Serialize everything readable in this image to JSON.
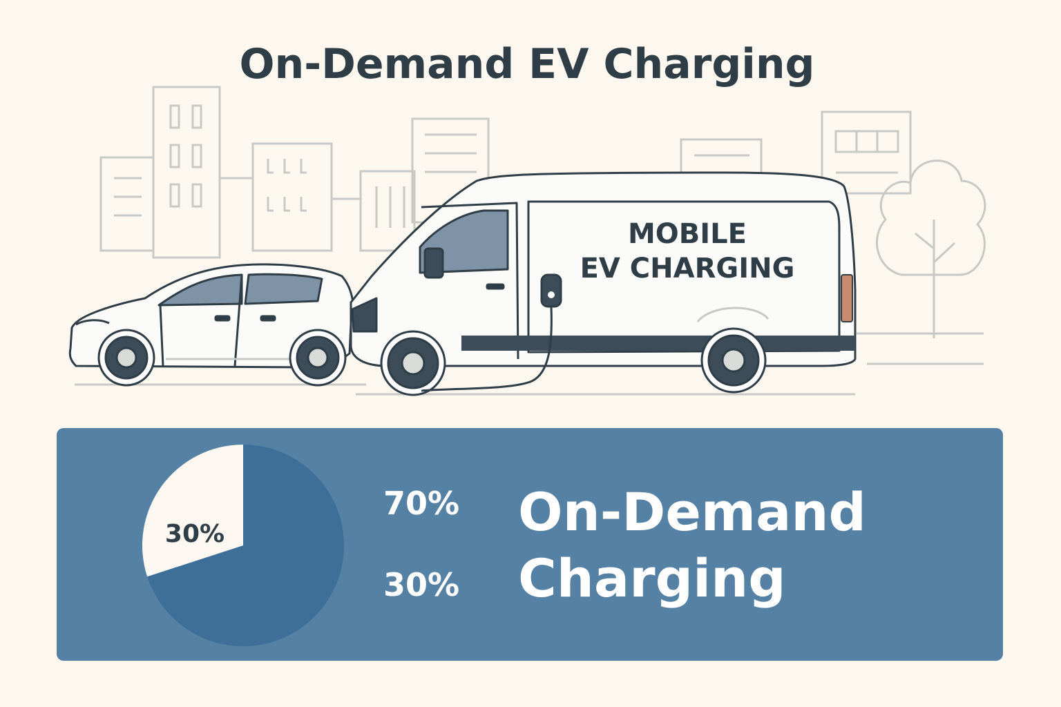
{
  "title": "On-Demand EV Charging",
  "van_label": {
    "line1": "MOBILE",
    "line2": "EV CHARGING"
  },
  "icons": [
    "city-skyline-icon",
    "tree-icon",
    "car-icon",
    "van-icon",
    "charging-plug-icon"
  ],
  "colors": {
    "background": "#fcf7ef",
    "panel": "#5581a4",
    "pie_main": "#3d6f99",
    "pie_minor": "#fdf9f2",
    "text_dark": "#2f3d47"
  },
  "stats": {
    "pct_a": "70%",
    "pct_b": "30%",
    "pie_slice_label": "30%",
    "caption_line1": "On-Demand",
    "caption_line2": "Charging"
  },
  "chart_data": {
    "type": "pie",
    "slices": [
      {
        "label": "",
        "value": 70,
        "color": "#3d6f99"
      },
      {
        "label": "30%",
        "value": 30,
        "color": "#fdf9f2"
      }
    ]
  }
}
